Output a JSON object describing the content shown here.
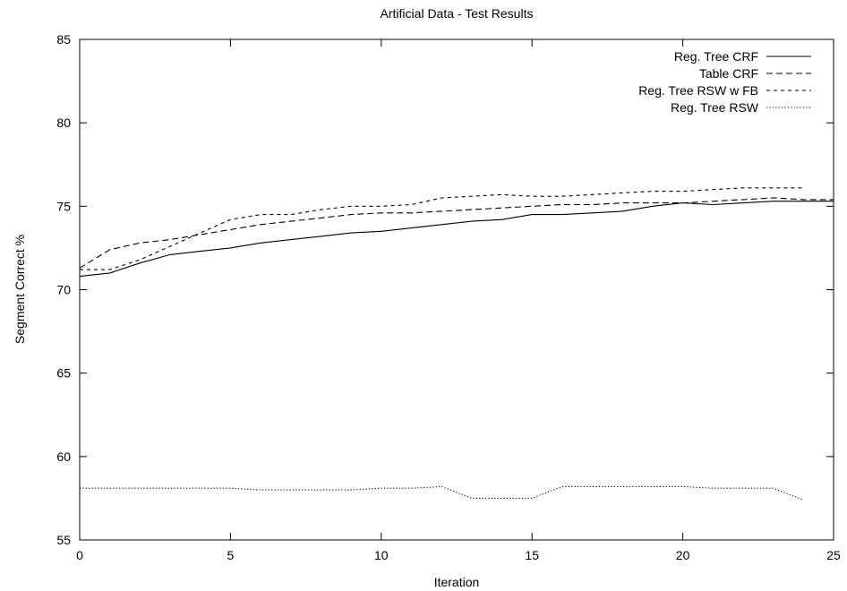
{
  "chart_data": {
    "type": "line",
    "title": "Artificial Data - Test Results",
    "xlabel": "Iteration",
    "ylabel": "Segment Correct %",
    "xlim": [
      0,
      25
    ],
    "ylim": [
      55,
      85
    ],
    "xticks": [
      0,
      5,
      10,
      15,
      20,
      25
    ],
    "yticks": [
      55,
      60,
      65,
      70,
      75,
      80,
      85
    ],
    "grid": false,
    "legend_position": "top-right",
    "series": [
      {
        "name": "Reg. Tree CRF",
        "dash": "solid",
        "x": [
          0,
          1,
          2,
          3,
          4,
          5,
          6,
          7,
          8,
          9,
          10,
          11,
          12,
          13,
          14,
          15,
          16,
          17,
          18,
          19,
          20,
          21,
          22,
          23,
          24,
          25
        ],
        "y": [
          70.8,
          71.0,
          71.6,
          72.1,
          72.3,
          72.5,
          72.8,
          73.0,
          73.2,
          73.4,
          73.5,
          73.7,
          73.9,
          74.1,
          74.2,
          74.5,
          74.5,
          74.6,
          74.7,
          75.0,
          75.2,
          75.1,
          75.2,
          75.3,
          75.3,
          75.3
        ]
      },
      {
        "name": "Table CRF",
        "dash": "long-dash",
        "x": [
          0,
          1,
          2,
          3,
          4,
          5,
          6,
          7,
          8,
          9,
          10,
          11,
          12,
          13,
          14,
          15,
          16,
          17,
          18,
          19,
          20,
          21,
          22,
          23,
          24,
          25
        ],
        "y": [
          71.3,
          72.4,
          72.8,
          73.0,
          73.3,
          73.6,
          73.9,
          74.1,
          74.3,
          74.5,
          74.6,
          74.6,
          74.7,
          74.8,
          74.9,
          75.0,
          75.1,
          75.1,
          75.2,
          75.2,
          75.2,
          75.3,
          75.4,
          75.5,
          75.4,
          75.4
        ]
      },
      {
        "name": "Reg. Tree RSW w FB",
        "dash": "short-dash",
        "x": [
          0,
          1,
          2,
          3,
          4,
          5,
          6,
          7,
          8,
          9,
          10,
          11,
          12,
          13,
          14,
          15,
          16,
          17,
          18,
          19,
          20,
          21,
          22,
          23,
          24
        ],
        "y": [
          71.2,
          71.2,
          71.8,
          72.6,
          73.4,
          74.2,
          74.5,
          74.5,
          74.8,
          75.0,
          75.0,
          75.1,
          75.5,
          75.6,
          75.7,
          75.6,
          75.6,
          75.7,
          75.8,
          75.9,
          75.9,
          76.0,
          76.1,
          76.1,
          76.1
        ]
      },
      {
        "name": "Reg. Tree RSW",
        "dash": "dotted",
        "x": [
          0,
          1,
          2,
          3,
          4,
          5,
          6,
          7,
          8,
          9,
          10,
          11,
          12,
          13,
          14,
          15,
          16,
          17,
          18,
          19,
          20,
          21,
          22,
          23,
          24
        ],
        "y": [
          58.1,
          58.1,
          58.1,
          58.1,
          58.1,
          58.1,
          58.0,
          58.0,
          58.0,
          58.0,
          58.1,
          58.1,
          58.2,
          57.5,
          57.5,
          57.5,
          58.2,
          58.2,
          58.2,
          58.2,
          58.2,
          58.1,
          58.1,
          58.1,
          57.4
        ]
      }
    ]
  }
}
